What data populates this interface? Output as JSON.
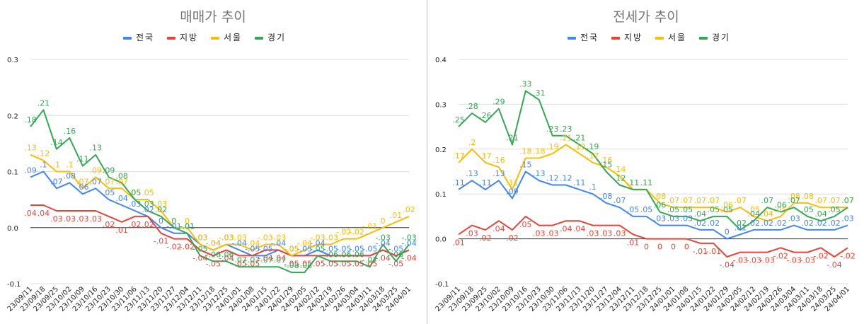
{
  "colors": {
    "nation": "#4285f4",
    "local": "#ea4335",
    "seoul": "#fbbc04",
    "gyeonggi": "#34a853"
  },
  "chart_data": [
    {
      "type": "line",
      "title": "매매가 추이",
      "ylim": [
        -0.1,
        0.3
      ],
      "yticks": [
        "-0.1",
        "0.0",
        "0.1",
        "0.2",
        "0.3"
      ],
      "categories": [
        "23/09/11",
        "23/09/18",
        "23/09/25",
        "23/10/02",
        "23/10/09",
        "23/10/16",
        "23/10/23",
        "23/10/30",
        "23/11/06",
        "23/11/13",
        "23/11/20",
        "23/11/27",
        "23/12/04",
        "23/12/11",
        "23/12/18",
        "23/12/25",
        "24/01/01",
        "24/01/08",
        "24/01/15",
        "24/01/22",
        "24/01/29",
        "24/02/05",
        "24/02/12",
        "24/02/19",
        "24/02/26",
        "24/03/04",
        "24/03/11",
        "24/03/18",
        "24/03/25",
        "24/04/01"
      ],
      "series": [
        {
          "name": "전국",
          "key": "nation",
          "values": [
            0.09,
            0.1,
            0.07,
            0.08,
            0.06,
            0.07,
            0.05,
            0.04,
            0.03,
            0.02,
            0,
            -0.01,
            -0.01,
            -0.03,
            -0.04,
            -0.03,
            -0.04,
            -0.05,
            -0.05,
            -0.04,
            -0.05,
            -0.05,
            -0.04,
            -0.05,
            -0.05,
            -0.05,
            -0.05,
            -0.04,
            -0.05,
            -0.04
          ]
        },
        {
          "name": "지방",
          "key": "local",
          "values": [
            0.04,
            0.04,
            0.03,
            0.03,
            0.03,
            0.03,
            0.02,
            0.01,
            0.02,
            0.02,
            -0.01,
            -0.02,
            -0.02,
            -0.04,
            -0.05,
            -0.04,
            -0.05,
            -0.05,
            -0.04,
            -0.04,
            -0.05,
            -0.05,
            -0.05,
            -0.05,
            -0.05,
            -0.05,
            -0.05,
            -0.04,
            -0.05,
            -0.04
          ]
        },
        {
          "name": "서울",
          "key": "seoul",
          "values": [
            0.13,
            0.12,
            0.1,
            0.1,
            0.07,
            0.09,
            0.07,
            0.07,
            0.05,
            0.05,
            0.03,
            0,
            0,
            -0.03,
            -0.04,
            -0.03,
            -0.03,
            -0.04,
            -0.03,
            -0.03,
            -0.05,
            -0.04,
            -0.03,
            -0.03,
            -0.02,
            -0.02,
            -0.01,
            0,
            0.01,
            0.02
          ]
        },
        {
          "name": "경기",
          "key": "gyeonggi",
          "values": [
            0.18,
            0.21,
            0.14,
            0.16,
            0.11,
            0.13,
            0.09,
            0.08,
            0.05,
            0.03,
            0.02,
            0,
            -0.01,
            -0.05,
            -0.06,
            -0.06,
            -0.07,
            -0.07,
            -0.07,
            -0.07,
            -0.08,
            -0.08,
            -0.05,
            -0.06,
            -0.06,
            -0.06,
            -0.07,
            -0.03,
            -0.06,
            -0.03
          ]
        }
      ],
      "legend": "top"
    },
    {
      "type": "line",
      "title": "전세가 추이",
      "ylim": [
        -0.1,
        0.4
      ],
      "yticks": [
        "-0.1",
        "0.0",
        "0.1",
        "0.2",
        "0.3",
        "0.4"
      ],
      "categories": [
        "23/09/11",
        "23/09/18",
        "23/09/25",
        "23/10/02",
        "23/10/09",
        "23/10/16",
        "23/10/23",
        "23/10/30",
        "23/11/06",
        "23/11/13",
        "23/11/20",
        "23/11/27",
        "23/12/04",
        "23/12/11",
        "23/12/18",
        "23/12/25",
        "24/01/01",
        "24/01/08",
        "24/01/15",
        "24/01/22",
        "24/01/29",
        "24/02/05",
        "24/02/12",
        "24/02/19",
        "24/02/26",
        "24/03/04",
        "24/03/11",
        "24/03/18",
        "24/03/25",
        "24/04/01"
      ],
      "series": [
        {
          "name": "전국",
          "key": "nation",
          "values": [
            0.11,
            0.13,
            0.11,
            0.13,
            0.09,
            0.15,
            0.13,
            0.12,
            0.12,
            0.11,
            0.1,
            0.08,
            0.07,
            0.05,
            0.05,
            0.03,
            0.03,
            0.03,
            0.02,
            0.02,
            0,
            0.01,
            0.02,
            0.02,
            0.02,
            0.03,
            0.02,
            0.02,
            0.02,
            0.03
          ]
        },
        {
          "name": "지방",
          "key": "local",
          "values": [
            0.01,
            0.03,
            0.02,
            0.04,
            0.02,
            0.05,
            0.03,
            0.03,
            0.04,
            0.04,
            0.03,
            0.03,
            0.03,
            0.01,
            0,
            0,
            0,
            0,
            -0.01,
            -0.01,
            -0.04,
            -0.03,
            -0.03,
            -0.03,
            -0.02,
            -0.03,
            -0.03,
            -0.02,
            -0.04,
            -0.02
          ]
        },
        {
          "name": "서울",
          "key": "seoul",
          "values": [
            0.17,
            0.2,
            0.17,
            0.16,
            0.11,
            0.18,
            0.18,
            0.19,
            0.21,
            0.19,
            0.17,
            0.16,
            0.14,
            0.11,
            0.11,
            0.08,
            0.07,
            0.07,
            0.07,
            0.07,
            0.06,
            0.07,
            0.05,
            0.04,
            0.05,
            0.08,
            0.08,
            0.07,
            0.07,
            0.07
          ]
        },
        {
          "name": "경기",
          "key": "gyeonggi",
          "values": [
            0.25,
            0.28,
            0.26,
            0.29,
            0.21,
            0.33,
            0.31,
            0.23,
            0.23,
            0.21,
            0.19,
            0.15,
            0.12,
            0.11,
            0.11,
            0.06,
            0.05,
            0.05,
            0.04,
            0.05,
            0.05,
            0.02,
            0.04,
            0.07,
            0.06,
            0.07,
            0.05,
            0.04,
            0.05,
            0.07
          ]
        }
      ],
      "legend": "top"
    }
  ]
}
